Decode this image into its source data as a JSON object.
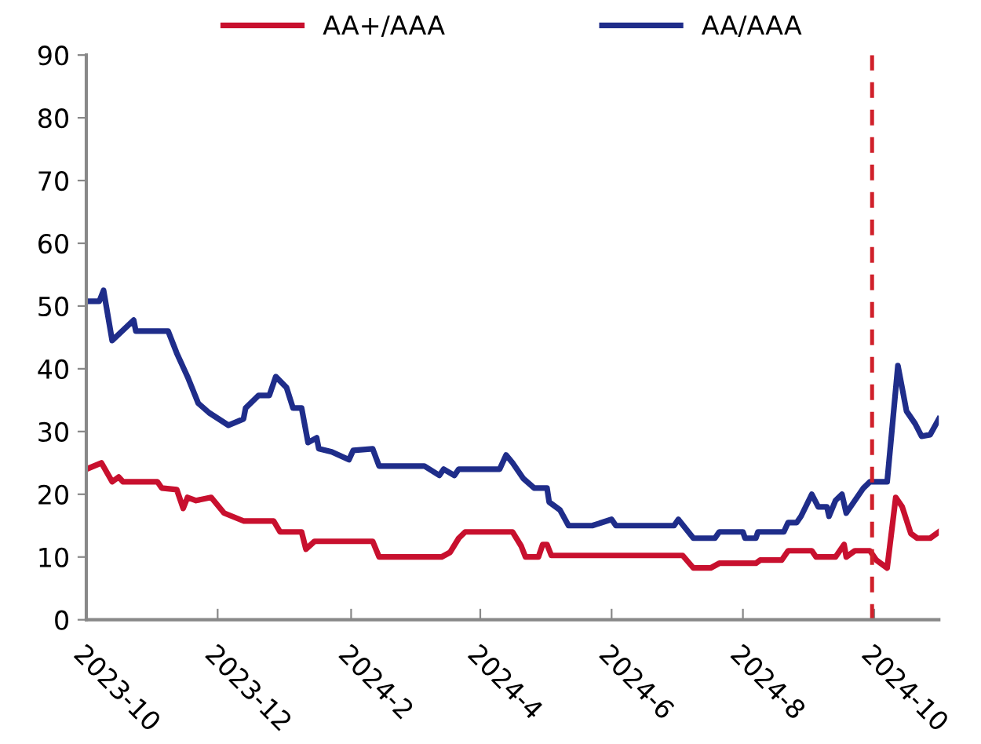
{
  "chart_data": {
    "type": "line",
    "xlim": [
      "2023-10-01",
      "2024-10-31"
    ],
    "xticks": [
      {
        "value": "2023-10-01",
        "label": "2023-10"
      },
      {
        "value": "2023-12-01",
        "label": "2023-12"
      },
      {
        "value": "2024-02-01",
        "label": "2024-2"
      },
      {
        "value": "2024-04-01",
        "label": "2024-4"
      },
      {
        "value": "2024-06-01",
        "label": "2024-6"
      },
      {
        "value": "2024-08-01",
        "label": "2024-8"
      },
      {
        "value": "2024-10-01",
        "label": "2024-10"
      }
    ],
    "ylim": [
      0,
      90
    ],
    "yticks": [
      0,
      10,
      20,
      30,
      40,
      50,
      60,
      70,
      80,
      90
    ],
    "grid": false,
    "legend": "top",
    "marker": "none",
    "line_style": "solid",
    "ref_lines": [
      {
        "axis": "x",
        "value": "2024-09-30",
        "color": "#d0202a",
        "line_style": "dashed"
      }
    ],
    "series": [
      {
        "name": "AA+/AAA",
        "color": "#c8102e",
        "x": [
          "2023-10-01",
          "2023-10-08",
          "2023-10-13",
          "2023-10-16",
          "2023-10-18",
          "2023-11-03",
          "2023-11-05",
          "2023-11-12",
          "2023-11-15",
          "2023-11-17",
          "2023-11-21",
          "2023-11-28",
          "2023-12-04",
          "2023-12-13",
          "2023-12-27",
          "2023-12-30",
          "2024-01-09",
          "2024-01-11",
          "2024-01-15",
          "2024-02-11",
          "2024-02-14",
          "2024-03-14",
          "2024-03-18",
          "2024-03-22",
          "2024-03-25",
          "2024-04-16",
          "2024-04-20",
          "2024-04-22",
          "2024-04-28",
          "2024-04-30",
          "2024-05-02",
          "2024-05-04",
          "2024-07-04",
          "2024-07-09",
          "2024-07-17",
          "2024-07-21",
          "2024-08-07",
          "2024-08-09",
          "2024-08-19",
          "2024-08-22",
          "2024-09-02",
          "2024-09-04",
          "2024-09-13",
          "2024-09-17",
          "2024-09-18",
          "2024-09-22",
          "2024-09-29",
          "2024-10-02",
          "2024-10-07",
          "2024-10-11",
          "2024-10-14",
          "2024-10-18",
          "2024-10-21",
          "2024-10-27",
          "2024-10-31"
        ],
        "values": [
          24,
          25,
          22,
          22.75,
          22,
          22,
          21,
          20.75,
          17.75,
          19.5,
          19,
          19.5,
          17,
          15.75,
          15.75,
          14,
          14,
          11.25,
          12.5,
          12.5,
          10,
          10,
          10.75,
          13,
          14,
          14,
          11.75,
          10,
          10,
          12,
          12,
          10.25,
          10.25,
          8.25,
          8.25,
          9,
          9,
          9.5,
          9.5,
          11,
          11,
          10,
          10,
          12,
          10,
          11,
          11,
          9.5,
          8.25,
          19.5,
          18,
          13.75,
          13,
          13,
          14
        ]
      },
      {
        "name": "AA/AAA",
        "color": "#1f2d8a",
        "x": [
          "2023-10-01",
          "2023-10-07",
          "2023-10-09",
          "2023-10-13",
          "2023-10-23",
          "2023-10-24",
          "2023-11-08",
          "2023-11-12",
          "2023-11-17",
          "2023-11-22",
          "2023-11-27",
          "2023-12-06",
          "2023-12-13",
          "2023-12-14",
          "2023-12-20",
          "2023-12-25",
          "2023-12-28",
          "2024-01-02",
          "2024-01-05",
          "2024-01-09",
          "2024-01-12",
          "2024-01-16",
          "2024-01-17",
          "2024-01-23",
          "2024-01-31",
          "2024-02-02",
          "2024-02-11",
          "2024-02-14",
          "2024-03-06",
          "2024-03-13",
          "2024-03-15",
          "2024-03-20",
          "2024-03-22",
          "2024-04-10",
          "2024-04-13",
          "2024-04-16",
          "2024-04-21",
          "2024-04-26",
          "2024-05-02",
          "2024-05-03",
          "2024-05-08",
          "2024-05-12",
          "2024-05-23",
          "2024-06-01",
          "2024-06-03",
          "2024-06-30",
          "2024-07-02",
          "2024-07-09",
          "2024-07-19",
          "2024-07-21",
          "2024-08-01",
          "2024-08-02",
          "2024-08-07",
          "2024-08-08",
          "2024-08-20",
          "2024-08-22",
          "2024-08-26",
          "2024-08-28",
          "2024-09-02",
          "2024-09-05",
          "2024-09-09",
          "2024-09-10",
          "2024-09-13",
          "2024-09-16",
          "2024-09-18",
          "2024-09-22",
          "2024-09-24",
          "2024-09-26",
          "2024-09-29",
          "2024-10-07",
          "2024-10-12",
          "2024-10-16",
          "2024-10-20",
          "2024-10-23",
          "2024-10-27",
          "2024-10-31"
        ],
        "values": [
          50.75,
          50.75,
          52.5,
          44.5,
          47.75,
          46,
          46,
          42.5,
          38.75,
          34.5,
          33,
          31,
          32,
          33.75,
          35.75,
          35.75,
          38.75,
          37,
          33.75,
          33.75,
          28.25,
          29,
          27.25,
          26.75,
          25.5,
          27,
          27.25,
          24.5,
          24.5,
          23,
          24,
          23,
          24,
          24,
          26.25,
          25,
          22.5,
          21,
          21,
          18.75,
          17.5,
          15,
          15,
          16,
          15,
          15,
          16,
          13,
          13,
          14,
          14,
          13,
          13,
          14,
          14,
          15.5,
          15.5,
          16.5,
          20,
          18,
          18,
          16.5,
          19,
          20,
          17,
          19,
          20,
          21,
          22,
          22,
          40.5,
          33.25,
          31.25,
          29.25,
          29.5,
          32
        ]
      }
    ]
  }
}
